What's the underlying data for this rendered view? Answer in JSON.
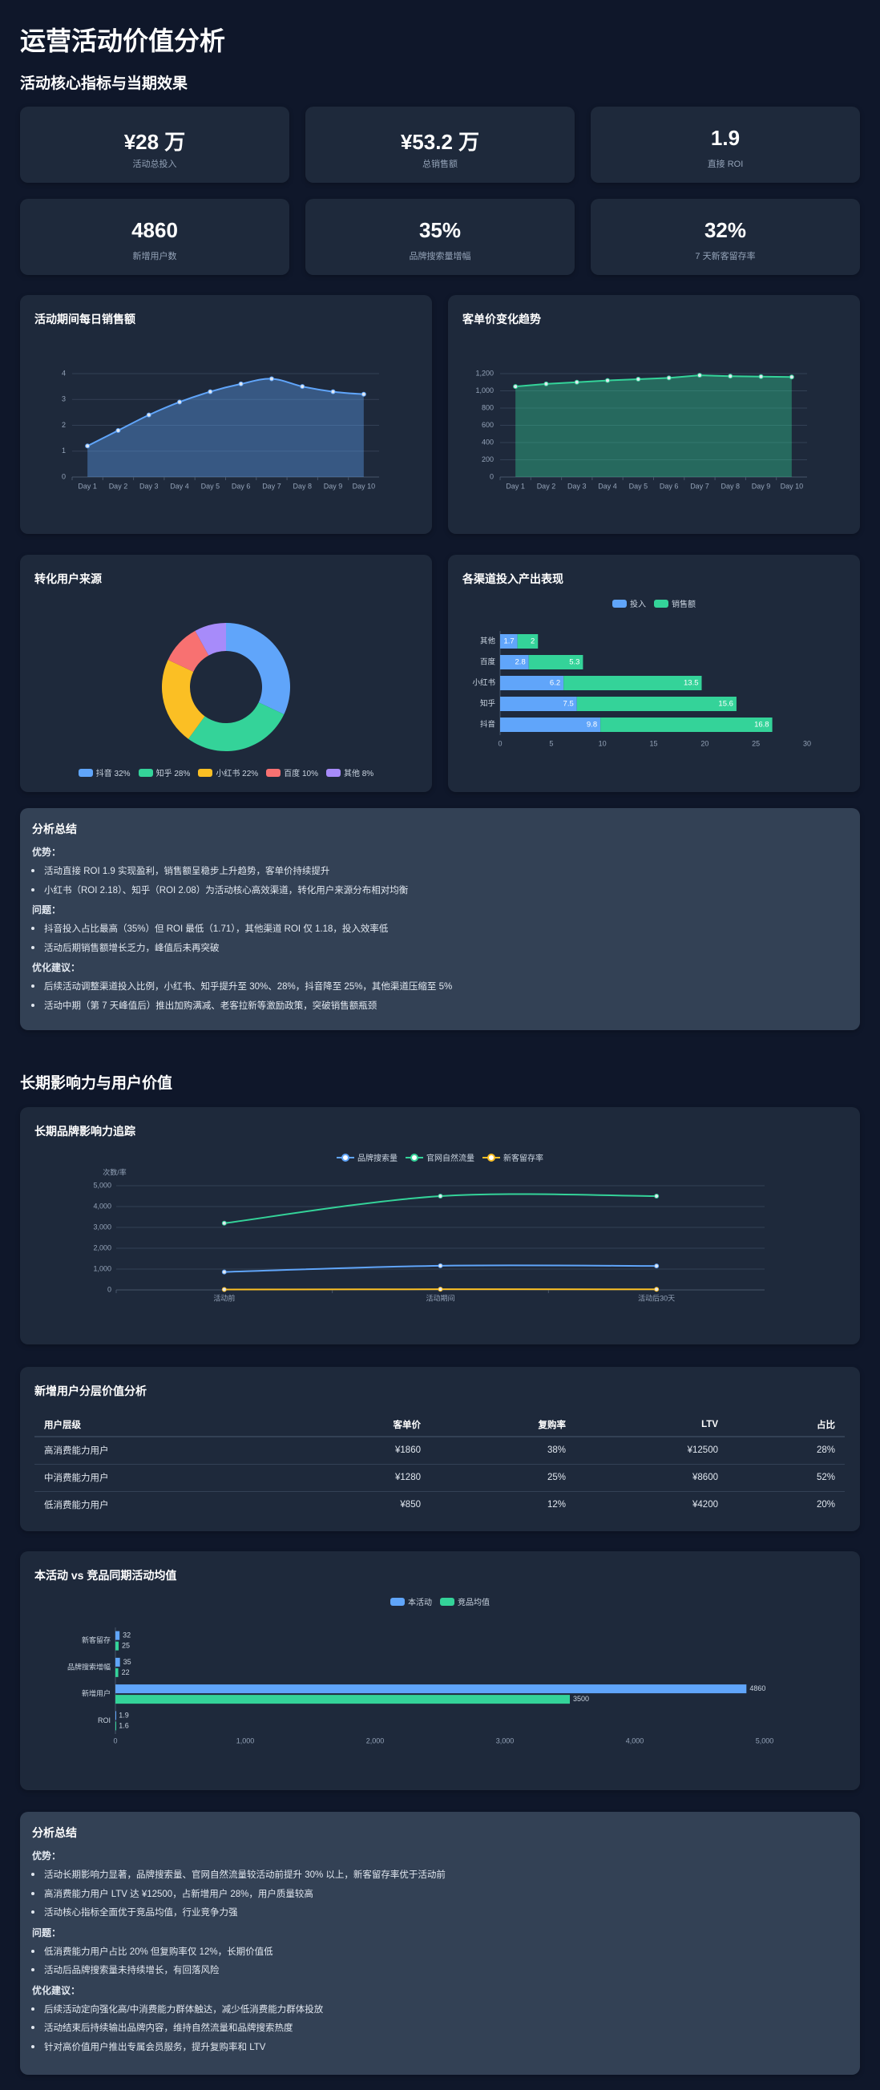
{
  "page_title": "运营活动价值分析",
  "section1_title": "活动核心指标与当期效果",
  "kpis": [
    {
      "value": "¥28 万",
      "label": "活动总投入"
    },
    {
      "value": "¥53.2 万",
      "label": "总销售额"
    },
    {
      "value": "1.9",
      "label": "直接 ROI"
    },
    {
      "value": "4860",
      "label": "新增用户数"
    },
    {
      "value": "35%",
      "label": "品牌搜索量增幅"
    },
    {
      "value": "32%",
      "label": "7 天新客留存率"
    }
  ],
  "colors": {
    "blue": "#60a5fa",
    "green": "#34d399",
    "yellow": "#fbbf24",
    "red": "#f87171",
    "purple": "#a78bfa"
  },
  "chart_data": [
    {
      "type": "area",
      "title": "活动期间每日销售额",
      "categories": [
        "Day 1",
        "Day 2",
        "Day 3",
        "Day 4",
        "Day 5",
        "Day 6",
        "Day 7",
        "Day 8",
        "Day 9",
        "Day 10"
      ],
      "values": [
        1.2,
        1.8,
        2.4,
        2.9,
        3.3,
        3.6,
        3.8,
        3.5,
        3.3,
        3.2
      ],
      "ylim": [
        0,
        4
      ],
      "yticks": [
        0,
        1,
        2,
        3,
        4
      ],
      "grid": true
    },
    {
      "type": "area",
      "title": "客单价变化趋势",
      "categories": [
        "Day 1",
        "Day 2",
        "Day 3",
        "Day 4",
        "Day 5",
        "Day 6",
        "Day 7",
        "Day 8",
        "Day 9",
        "Day 10"
      ],
      "values": [
        1050,
        1080,
        1100,
        1120,
        1135,
        1150,
        1180,
        1170,
        1165,
        1160
      ],
      "ylim": [
        0,
        1200
      ],
      "yticks": [
        0,
        200,
        400,
        600,
        800,
        1000,
        1200
      ],
      "grid": true
    },
    {
      "type": "pie",
      "title": "转化用户来源",
      "donut": true,
      "slices": [
        {
          "name": "抖音",
          "value": 32,
          "label": "抖音 32%"
        },
        {
          "name": "知乎",
          "value": 28,
          "label": "知乎 28%"
        },
        {
          "name": "小红书",
          "value": 22,
          "label": "小红书 22%"
        },
        {
          "name": "百度",
          "value": 10,
          "label": "百度 10%"
        },
        {
          "name": "其他",
          "value": 8,
          "label": "其他 8%"
        }
      ],
      "legend": "bottom"
    },
    {
      "type": "bar",
      "orientation": "horizontal",
      "stacked": true,
      "title": "各渠道投入产出表现",
      "categories": [
        "抖音",
        "知乎",
        "小红书",
        "百度",
        "其他"
      ],
      "series": [
        {
          "name": "投入",
          "values": [
            9.8,
            7.5,
            6.2,
            2.8,
            1.7
          ]
        },
        {
          "name": "销售额",
          "values": [
            16.8,
            15.6,
            13.5,
            5.3,
            2
          ]
        }
      ],
      "xlim": [
        0,
        30
      ],
      "xticks": [
        0,
        5,
        10,
        15,
        20,
        25,
        30
      ],
      "legend": "top"
    },
    {
      "type": "line",
      "title": "长期品牌影响力追踪",
      "ylabel": "次数/率",
      "categories": [
        "活动前",
        "活动期间",
        "活动后30天"
      ],
      "series": [
        {
          "name": "品牌搜索量",
          "values": [
            860,
            1160,
            1150
          ]
        },
        {
          "name": "官网自然流量",
          "values": [
            3200,
            4500,
            4500
          ]
        },
        {
          "name": "新客留存率",
          "values": [
            18,
            32,
            28
          ]
        }
      ],
      "ylim": [
        0,
        5000
      ],
      "yticks": [
        0,
        1000,
        2000,
        3000,
        4000,
        5000
      ],
      "grid": true,
      "legend": "top"
    },
    {
      "type": "bar",
      "orientation": "horizontal",
      "title": "本活动 vs 竞品同期活动均值",
      "categories": [
        "ROI",
        "新增用户",
        "品牌搜索增幅",
        "新客留存"
      ],
      "series": [
        {
          "name": "本活动",
          "values": [
            1.9,
            4860,
            35,
            32
          ]
        },
        {
          "name": "竞品均值",
          "values": [
            1.6,
            3500,
            22,
            25
          ]
        }
      ],
      "xlim": [
        0,
        5000
      ],
      "xticks": [
        0,
        1000,
        2000,
        3000,
        4000,
        5000
      ],
      "legend": "top"
    }
  ],
  "summary1": {
    "title": "分析总结",
    "groups": [
      {
        "heading": "优势：",
        "items": [
          "活动直接 ROI 1.9 实现盈利，销售额呈稳步上升趋势，客单价持续提升",
          "小红书（ROI 2.18）、知乎（ROI 2.08）为活动核心高效渠道，转化用户来源分布相对均衡"
        ]
      },
      {
        "heading": "问题：",
        "items": [
          "抖音投入占比最高（35%）但 ROI 最低（1.71），其他渠道 ROI 仅 1.18，投入效率低",
          "活动后期销售额增长乏力，峰值后未再突破"
        ]
      },
      {
        "heading": "优化建议：",
        "items": [
          "后续活动调整渠道投入比例，小红书、知乎提升至 30%、28%，抖音降至 25%，其他渠道压缩至 5%",
          "活动中期（第 7 天峰值后）推出加购满减、老客拉新等激励政策，突破销售额瓶颈"
        ]
      }
    ]
  },
  "section2_title": "长期影响力与用户价值",
  "table": {
    "title": "新增用户分层价值分析",
    "headers": [
      "用户层级",
      "客单价",
      "复购率",
      "LTV",
      "占比"
    ],
    "rows": [
      [
        "高消费能力用户",
        "¥1860",
        "38%",
        "¥12500",
        "28%"
      ],
      [
        "中消费能力用户",
        "¥1280",
        "25%",
        "¥8600",
        "52%"
      ],
      [
        "低消费能力用户",
        "¥850",
        "12%",
        "¥4200",
        "20%"
      ]
    ]
  },
  "summary2": {
    "title": "分析总结",
    "groups": [
      {
        "heading": "优势：",
        "items": [
          "活动长期影响力显著，品牌搜索量、官网自然流量较活动前提升 30% 以上，新客留存率优于活动前",
          "高消费能力用户 LTV 达 ¥12500，占新增用户 28%，用户质量较高",
          "活动核心指标全面优于竞品均值，行业竞争力强"
        ]
      },
      {
        "heading": "问题：",
        "items": [
          "低消费能力用户占比 20% 但复购率仅 12%，长期价值低",
          "活动后品牌搜索量未持续增长，有回落风险"
        ]
      },
      {
        "heading": "优化建议：",
        "items": [
          "后续活动定向强化高/中消费能力群体触达，减少低消费能力群体投放",
          "活动结束后持续输出品牌内容，维持自然流量和品牌搜索热度",
          "针对高价值用户推出专属会员服务，提升复购率和 LTV"
        ]
      }
    ]
  }
}
